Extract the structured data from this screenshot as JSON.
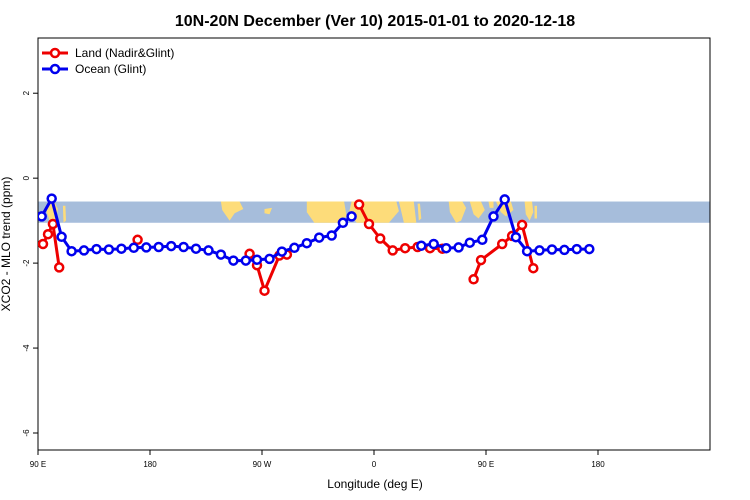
{
  "chart_data": {
    "type": "line",
    "title": "10N-20N December (Ver 10)   2015-01-01 to 2020-12-18",
    "xlabel": "Longitude (deg E)",
    "ylabel": "XCO2 - MLO trend (ppm)",
    "xlim": [
      90,
      630
    ],
    "ylim": [
      -6.4,
      3.3
    ],
    "x_ticks": [
      {
        "value": 90,
        "label": "90 E"
      },
      {
        "value": 180,
        "label": "180"
      },
      {
        "value": 270,
        "label": "90 W"
      },
      {
        "value": 360,
        "label": "0"
      },
      {
        "value": 450,
        "label": "90 E"
      },
      {
        "value": 540,
        "label": "180"
      }
    ],
    "y_ticks": [
      {
        "value": 2,
        "label": "2"
      },
      {
        "value": 0,
        "label": "0"
      },
      {
        "value": -2,
        "label": "-2"
      },
      {
        "value": -4,
        "label": "-4"
      },
      {
        "value": -6,
        "label": "-6"
      }
    ],
    "map_band": {
      "y_top": -0.55,
      "y_bottom": -1.05,
      "ocean_color": "#a6bddb",
      "land_color": "#fddc7a"
    },
    "series": [
      {
        "name": "Land (Nadir&Glint)",
        "color": "#ee0000",
        "segments": [
          [
            [
              94,
              -1.55
            ],
            [
              98,
              -1.32
            ],
            [
              102,
              -1.08
            ],
            [
              107,
              -2.1
            ]
          ],
          [
            [
              170,
              -1.45
            ]
          ],
          [
            [
              260,
              -1.78
            ],
            [
              266,
              -2.05
            ],
            [
              272,
              -2.65
            ],
            [
              284,
              -1.82
            ],
            [
              290,
              -1.8
            ]
          ],
          [
            [
              348,
              -0.62
            ],
            [
              356,
              -1.08
            ],
            [
              365,
              -1.42
            ],
            [
              375,
              -1.7
            ],
            [
              385,
              -1.65
            ],
            [
              395,
              -1.62
            ],
            [
              405,
              -1.65
            ],
            [
              415,
              -1.66
            ]
          ],
          [
            [
              440,
              -2.38
            ],
            [
              446,
              -1.93
            ],
            [
              463,
              -1.55
            ],
            [
              471,
              -1.36
            ],
            [
              479,
              -1.1
            ],
            [
              488,
              -2.12
            ]
          ]
        ]
      },
      {
        "name": "Ocean (Glint)",
        "color": "#0000ee",
        "segments": [
          [
            [
              93,
              -0.9
            ],
            [
              101,
              -0.48
            ],
            [
              109,
              -1.38
            ],
            [
              117,
              -1.72
            ],
            [
              127,
              -1.7
            ],
            [
              137,
              -1.67
            ],
            [
              147,
              -1.68
            ],
            [
              157,
              -1.66
            ],
            [
              167,
              -1.64
            ],
            [
              177,
              -1.63
            ],
            [
              187,
              -1.62
            ],
            [
              197,
              -1.6
            ],
            [
              207,
              -1.62
            ],
            [
              217,
              -1.66
            ],
            [
              227,
              -1.7
            ],
            [
              237,
              -1.8
            ],
            [
              247,
              -1.94
            ],
            [
              257,
              -1.94
            ],
            [
              266,
              -1.92
            ],
            [
              276,
              -1.9
            ],
            [
              286,
              -1.73
            ],
            [
              296,
              -1.64
            ],
            [
              306,
              -1.53
            ],
            [
              316,
              -1.4
            ],
            [
              326,
              -1.35
            ],
            [
              335,
              -1.05
            ],
            [
              342,
              -0.9
            ]
          ],
          [
            [
              398,
              -1.59
            ],
            [
              408,
              -1.55
            ],
            [
              418,
              -1.65
            ],
            [
              428,
              -1.63
            ],
            [
              437,
              -1.52
            ],
            [
              447,
              -1.45
            ],
            [
              456,
              -0.9
            ],
            [
              465,
              -0.5
            ],
            [
              474,
              -1.39
            ],
            [
              483,
              -1.72
            ],
            [
              493,
              -1.7
            ],
            [
              503,
              -1.68
            ],
            [
              513,
              -1.69
            ],
            [
              523,
              -1.67
            ],
            [
              533,
              -1.67
            ]
          ]
        ]
      }
    ]
  }
}
